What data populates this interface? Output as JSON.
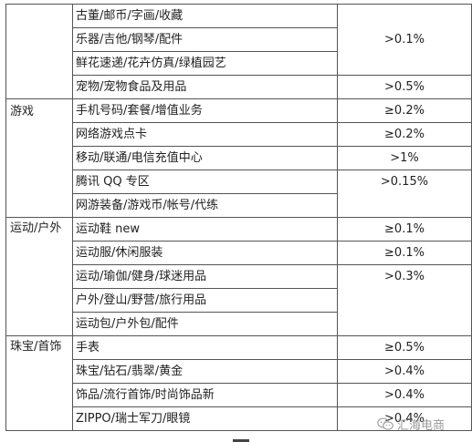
{
  "rows": [
    {
      "cat": "",
      "item": "古董/邮币/字画/收藏",
      "rate": ""
    },
    {
      "cat": "",
      "item": "乐器/吉他/钢琴/配件",
      "rate": ">0.1%"
    },
    {
      "cat": "",
      "item": "鲜花速递/花卉仿真/绿植园艺",
      "rate": ""
    },
    {
      "cat": "",
      "item": "宠物/宠物食品及用品",
      "rate": ">0.5%"
    },
    {
      "cat": "游戏",
      "item": "手机号码/套餐/增值业务",
      "rate": "≥0.2%"
    },
    {
      "cat": "",
      "item": "网络游戏点卡",
      "rate": "≥0.2%"
    },
    {
      "cat": "",
      "item": "移动/联通/电信充值中心",
      "rate": ">1%"
    },
    {
      "cat": "",
      "item": "腾讯 QQ 专区",
      "rate": ">0.15%"
    },
    {
      "cat": "",
      "item": "网游装备/游戏币/帐号/代练",
      "rate": ""
    },
    {
      "cat": "运动/户外",
      "item": "运动鞋 new",
      "rate": "≥0.1%"
    },
    {
      "cat": "",
      "item": "运动服/休闲服装",
      "rate": "≥0.1%"
    },
    {
      "cat": "",
      "item": "运动/瑜伽/健身/球迷用品",
      "rate": ">0.3%"
    },
    {
      "cat": "",
      "item": "户外/登山/野营/旅行用品",
      "rate": ""
    },
    {
      "cat": "",
      "item": "运动包/户外包/配件",
      "rate": ""
    },
    {
      "cat": "珠宝/首饰",
      "item": "手表",
      "rate": "≥0.5%"
    },
    {
      "cat": "",
      "item": "珠宝/钻石/翡翠/黄金",
      "rate": ">0.4%"
    },
    {
      "cat": "",
      "item": "饰品/流行首饰/时尚饰品新",
      "rate": ">0.4%"
    },
    {
      "cat": "",
      "item": "ZIPPO/瑞士军刀/眼镜",
      "rate": ">0.4%"
    }
  ],
  "watermark": {
    "text": "汇海电商",
    "icon": "wechat-icon"
  }
}
